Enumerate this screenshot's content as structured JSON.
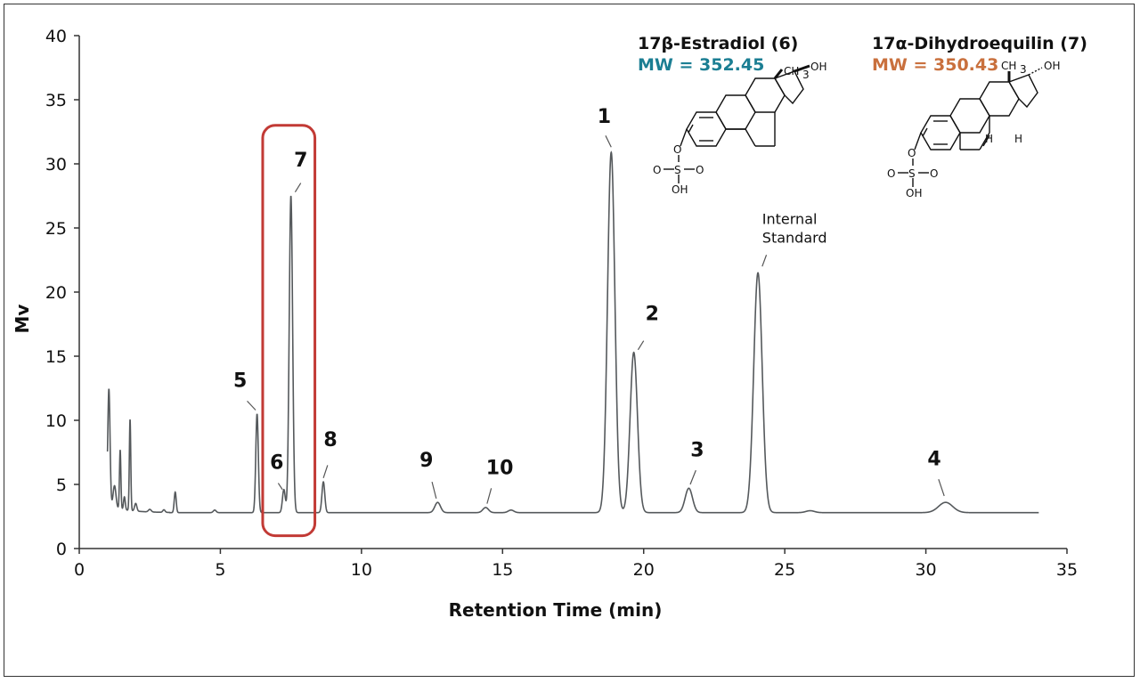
{
  "chart_data": {
    "type": "line",
    "title": "",
    "xlabel": "Retention Time (min)",
    "ylabel": "Mv",
    "xlim": [
      0,
      35
    ],
    "ylim": [
      0,
      40
    ],
    "x_ticks": [
      0,
      5,
      10,
      15,
      20,
      25,
      30,
      35
    ],
    "y_ticks": [
      0,
      5,
      10,
      15,
      20,
      25,
      30,
      35,
      40
    ],
    "grid": false,
    "baseline": 2.8,
    "trace_start": 1.0,
    "trace_end": 34.0,
    "peaks": [
      {
        "t": 1.05,
        "h": 11.9,
        "w": 0.04
      },
      {
        "t": 1.25,
        "h": 4.5,
        "w": 0.05
      },
      {
        "t": 1.45,
        "h": 7.4,
        "w": 0.025
      },
      {
        "t": 1.6,
        "h": 3.8,
        "w": 0.03
      },
      {
        "t": 1.8,
        "h": 9.9,
        "w": 0.025
      },
      {
        "t": 2.0,
        "h": 3.4,
        "w": 0.04
      },
      {
        "t": 2.5,
        "h": 3.0,
        "w": 0.05
      },
      {
        "t": 3.0,
        "h": 3.0,
        "w": 0.04
      },
      {
        "t": 3.4,
        "h": 4.4,
        "w": 0.035
      },
      {
        "t": 4.8,
        "h": 3.0,
        "w": 0.05
      },
      {
        "t": 6.3,
        "h": 10.5,
        "w": 0.045
      },
      {
        "t": 7.25,
        "h": 4.6,
        "w": 0.05
      },
      {
        "t": 7.5,
        "h": 27.5,
        "w": 0.06
      },
      {
        "t": 8.65,
        "h": 5.2,
        "w": 0.05
      },
      {
        "t": 12.7,
        "h": 3.6,
        "w": 0.1
      },
      {
        "t": 14.4,
        "h": 3.2,
        "w": 0.1
      },
      {
        "t": 15.3,
        "h": 3.0,
        "w": 0.1
      },
      {
        "t": 18.85,
        "h": 30.9,
        "w": 0.13
      },
      {
        "t": 19.65,
        "h": 15.3,
        "w": 0.13
      },
      {
        "t": 21.6,
        "h": 4.7,
        "w": 0.13
      },
      {
        "t": 24.05,
        "h": 21.5,
        "w": 0.15
      },
      {
        "t": 25.9,
        "h": 2.95,
        "w": 0.15
      },
      {
        "t": 30.7,
        "h": 3.6,
        "w": 0.25
      }
    ],
    "annotations": [
      {
        "label": "1",
        "x": 18.6,
        "y": 33.2
      },
      {
        "label": "2",
        "x": 20.3,
        "y": 17.8
      },
      {
        "label": "3",
        "x": 21.9,
        "y": 7.2
      },
      {
        "label": "4",
        "x": 30.3,
        "y": 6.5
      },
      {
        "label": "5",
        "x": 5.7,
        "y": 12.6
      },
      {
        "label": "6",
        "x": 7.0,
        "y": 6.2
      },
      {
        "label": "7",
        "x": 7.85,
        "y": 29.8
      },
      {
        "label": "8",
        "x": 8.9,
        "y": 8.0
      },
      {
        "label": "9",
        "x": 12.3,
        "y": 6.4
      },
      {
        "label": "10",
        "x": 14.9,
        "y": 5.8
      }
    ],
    "internal_standard_label": [
      "Internal",
      "Standard"
    ],
    "highlight_box": {
      "x0": 6.5,
      "x1": 8.35,
      "y0": 1.0,
      "y1": 33.0,
      "color": "#c23a35"
    }
  },
  "compounds": [
    {
      "name": "17β-Estradiol (6)",
      "mw": "MW = 352.45",
      "color": "#1b7e93"
    },
    {
      "name": "17α-Dihydroequilin (7)",
      "mw": "MW = 350.43",
      "color": "#c9703d"
    }
  ],
  "structure_labels": {
    "ch3": "CH",
    "ch3_sub": "3",
    "oh": "OH",
    "o": "O",
    "s": "S",
    "h": "H"
  },
  "colors": {
    "trace": "#55595c",
    "axis": "#333333"
  }
}
